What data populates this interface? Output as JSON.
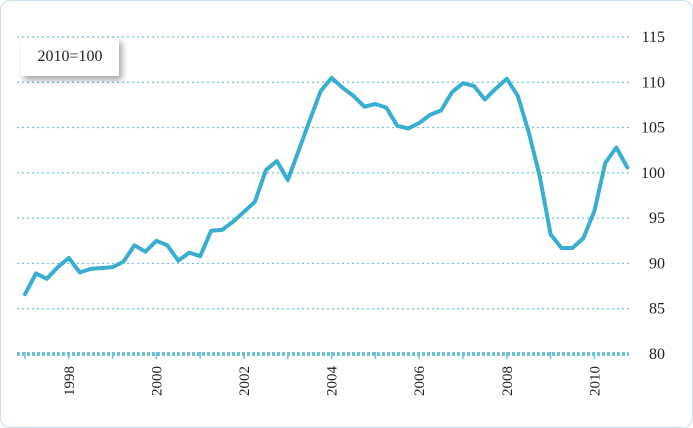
{
  "colors": {
    "line": "#3aaed0",
    "grid": "#6fc1dc",
    "text": "#222222"
  },
  "chart_data": {
    "type": "line",
    "unit_label": "2010=100",
    "ylim": [
      80,
      115
    ],
    "y_ticks": [
      "80",
      "85",
      "90",
      "95",
      "100",
      "105",
      "110",
      "115"
    ],
    "x_ticks": [
      "1998",
      "2000",
      "2002",
      "2004",
      "2006",
      "2008",
      "2010"
    ],
    "grid": "horizontal-dotted",
    "series": [
      {
        "x": [
          1997.0,
          1997.25,
          1997.5,
          1997.75,
          1998.0,
          1998.25,
          1998.5,
          1998.75,
          1999.0,
          1999.25,
          1999.5,
          1999.75,
          2000.0,
          2000.25,
          2000.5,
          2000.75,
          2001.0,
          2001.25,
          2001.5,
          2001.75,
          2002.0,
          2002.25,
          2002.5,
          2002.75,
          2003.0,
          2003.25,
          2003.5,
          2003.75,
          2004.0,
          2004.25,
          2004.5,
          2004.75,
          2005.0,
          2005.25,
          2005.5,
          2005.75,
          2006.0,
          2006.25,
          2006.5,
          2006.75,
          2007.0,
          2007.25,
          2007.5,
          2007.75,
          2008.0,
          2008.25,
          2008.5,
          2008.75,
          2009.0,
          2009.25,
          2009.5,
          2009.75,
          2010.0,
          2010.25,
          2010.5,
          2010.75
        ],
        "values": [
          86.6,
          88.9,
          88.3,
          89.6,
          90.6,
          89.0,
          89.4,
          89.5,
          89.6,
          90.2,
          92.0,
          91.3,
          92.5,
          92.0,
          90.3,
          91.2,
          90.8,
          93.6,
          93.7,
          94.6,
          95.7,
          96.8,
          100.3,
          101.3,
          99.2,
          102.5,
          105.8,
          109.0,
          110.5,
          109.4,
          108.5,
          107.3,
          107.6,
          107.2,
          105.2,
          104.9,
          105.5,
          106.4,
          106.9,
          108.9,
          109.9,
          109.6,
          108.1,
          109.3,
          110.4,
          108.5,
          104.5,
          99.7,
          93.2,
          91.7,
          91.7,
          92.8,
          95.8,
          101.1,
          102.8,
          100.6
        ]
      }
    ]
  }
}
